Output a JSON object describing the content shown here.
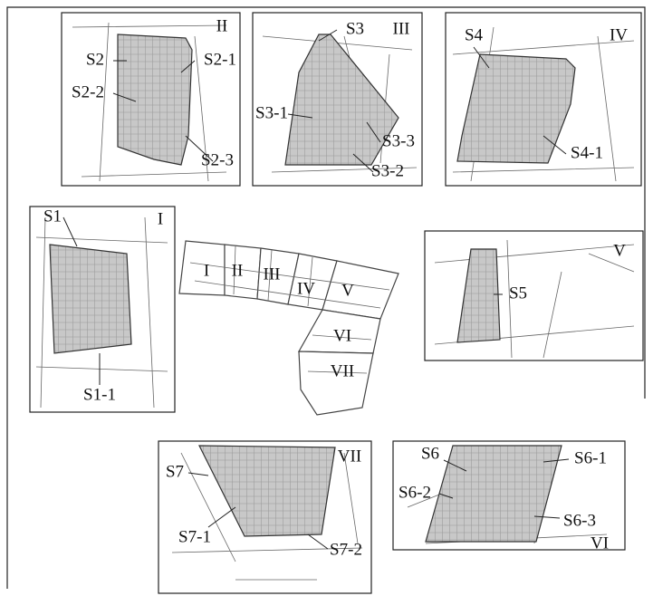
{
  "panels": [
    {
      "numeral": "II",
      "labels": [
        "S2",
        "S2-1",
        "S2-2",
        "S2-3"
      ]
    },
    {
      "numeral": "III",
      "labels": [
        "S3",
        "S3-1",
        "S3-3",
        "S3-2"
      ]
    },
    {
      "numeral": "IV",
      "labels": [
        "S4",
        "S4-1"
      ]
    },
    {
      "numeral": "I",
      "labels": [
        "S1",
        "S1-1"
      ]
    },
    {
      "numeral": "V",
      "labels": [
        "S5"
      ]
    },
    {
      "numeral": "VII",
      "labels": [
        "S7",
        "S7-1",
        "S7-2"
      ]
    },
    {
      "numeral": "VI",
      "labels": [
        "S6",
        "S6-1",
        "S6-2",
        "S6-3"
      ]
    }
  ],
  "overview": {
    "labels": [
      "I",
      "II",
      "III",
      "IV",
      "V",
      "VI",
      "VII"
    ]
  }
}
